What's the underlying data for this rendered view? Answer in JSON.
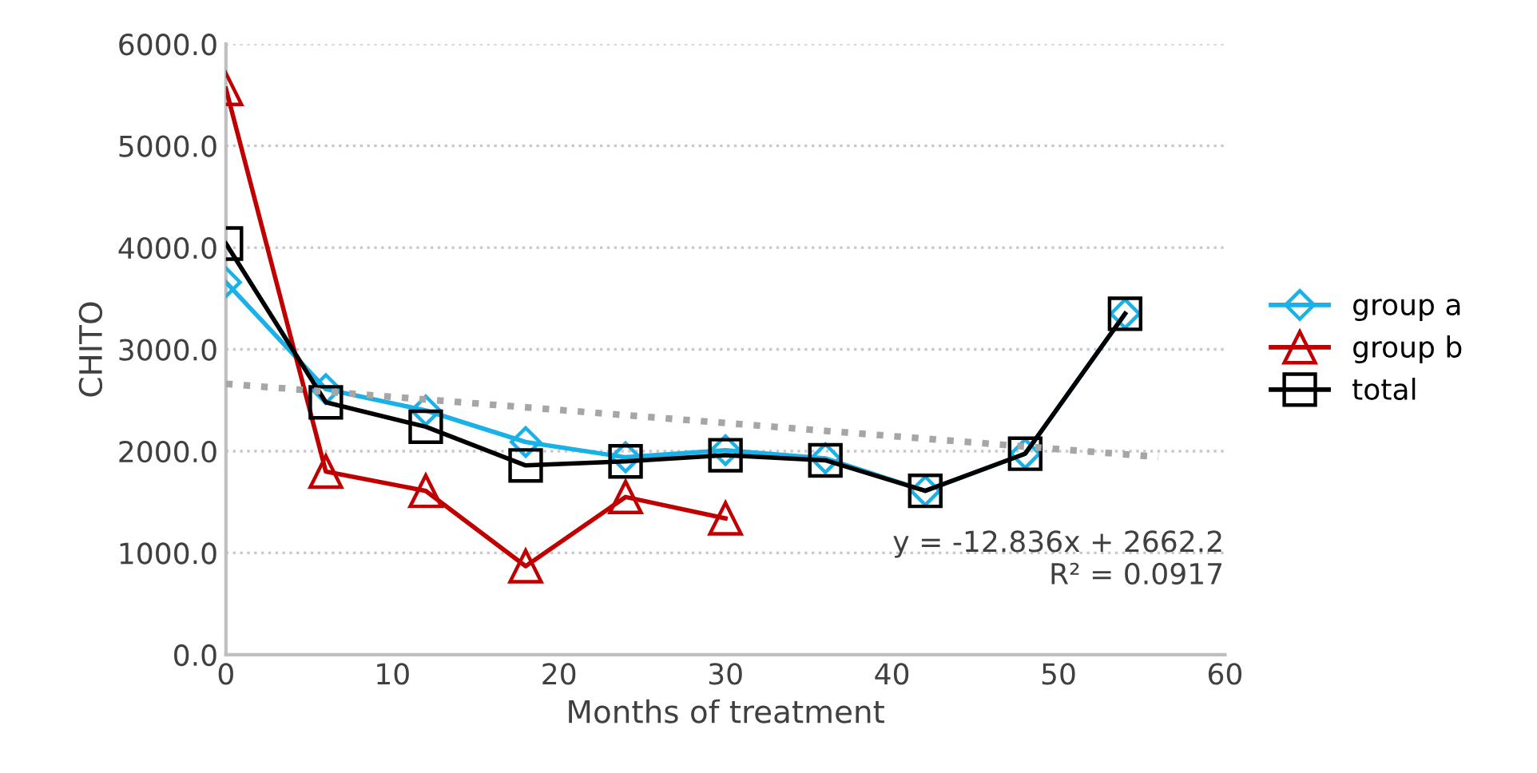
{
  "chart_data": {
    "type": "line",
    "xlabel": "Months of treatment",
    "ylabel": "CHITO",
    "x": [
      0,
      6,
      12,
      18,
      24,
      30,
      36,
      42,
      48,
      54
    ],
    "series": [
      {
        "name": "group a",
        "color": "#1ab0e8",
        "marker": "diamond",
        "values": [
          3660,
          2610,
          2400,
          2090,
          1940,
          2010,
          1930,
          1610,
          1975,
          3350
        ]
      },
      {
        "name": "group b",
        "color": "#c00000",
        "marker": "triangle",
        "values": [
          5560,
          1800,
          1610,
          870,
          1550,
          1340,
          null,
          null,
          null,
          null
        ]
      },
      {
        "name": "total",
        "color": "#000000",
        "marker": "square",
        "values": [
          4040,
          2480,
          2240,
          1860,
          1900,
          1960,
          1910,
          1610,
          1975,
          3350
        ]
      },
      {
        "type": "line",
        "color": "#a6a6a6",
        "marker": "none",
        "line_style": "dotted",
        "x": [
          0,
          56
        ],
        "values": [
          2662,
          1943
        ]
      }
    ],
    "xlim": [
      0,
      60
    ],
    "xticks": [
      0,
      10,
      20,
      30,
      40,
      50,
      60
    ],
    "ylim": [
      0,
      6000
    ],
    "yticks": [
      {
        "value": 0,
        "label": "0.0"
      },
      {
        "value": 1000,
        "label": "1000.0"
      },
      {
        "value": 2000,
        "label": "2000.0"
      },
      {
        "value": 3000,
        "label": "3000.0"
      },
      {
        "value": 4000,
        "label": "4000.0"
      },
      {
        "value": 5000,
        "label": "5000.0"
      },
      {
        "value": 6000,
        "label": "6000.0"
      }
    ],
    "grid": "y",
    "legend": "right",
    "annotations": [
      "y = -12.836x + 2662.2\nR² = 0.0917"
    ]
  }
}
